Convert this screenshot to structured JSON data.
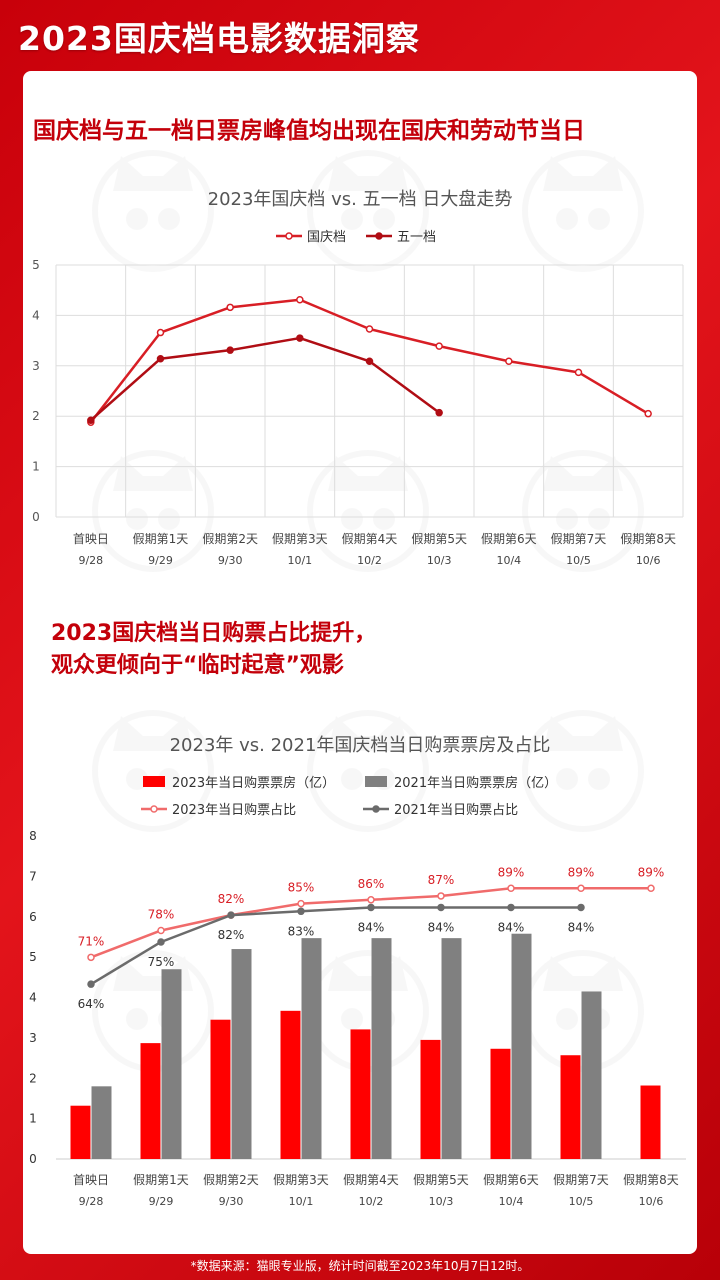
{
  "header": {
    "title": "2023国庆档电影数据洞察"
  },
  "section1": {
    "headline": "国庆档与五一档日票房峰值均出现在国庆和劳动节当日"
  },
  "section2": {
    "headline_line1": "2023国庆档当日购票占比提升，",
    "headline_line2": "观众更倾向于“临时起意”观影"
  },
  "footer": {
    "source": "*数据来源：猫眼专业版，统计时间截至2023年10月7日12时。"
  },
  "colors": {
    "accent": "#c3000a",
    "red_bar": "#ff0000",
    "gray_bar": "#808080",
    "pink_line": "#f06b6b",
    "gray_line": "#6b6b6b",
    "dark_red_line": "#b00d14",
    "red_line": "#d81e25"
  },
  "chart_data": [
    {
      "type": "line",
      "title": "2023年国庆档 vs. 五一档 日大盘走势",
      "categories": [
        "首映日",
        "假期第1天",
        "假期第2天",
        "假期第3天",
        "假期第4天",
        "假期第5天",
        "假期第6天",
        "假期第7天",
        "假期第8天"
      ],
      "dates": [
        "9/28",
        "9/29",
        "9/30",
        "10/1",
        "10/2",
        "10/3",
        "10/4",
        "10/5",
        "10/6"
      ],
      "ylim": [
        0,
        5
      ],
      "yticks": [
        0,
        1,
        2,
        3,
        4,
        5
      ],
      "grid": true,
      "legend_position": "top",
      "series": [
        {
          "name": "国庆档",
          "values": [
            1.88,
            3.66,
            4.16,
            4.31,
            3.73,
            3.39,
            3.09,
            2.87,
            2.05
          ]
        },
        {
          "name": "五一档",
          "values": [
            1.92,
            3.14,
            3.31,
            3.55,
            3.09,
            2.07,
            null,
            null,
            null
          ]
        }
      ]
    },
    {
      "type": "bar",
      "title": "2023年 vs. 2021年国庆档当日购票票房及占比",
      "categories": [
        "首映日",
        "假期第1天",
        "假期第2天",
        "假期第3天",
        "假期第4天",
        "假期第5天",
        "假期第6天",
        "假期第7天",
        "假期第8天"
      ],
      "dates": [
        "9/28",
        "9/29",
        "9/30",
        "10/1",
        "10/2",
        "10/3",
        "10/4",
        "10/5",
        "10/6"
      ],
      "ylim": [
        0,
        8
      ],
      "yticks": [
        0,
        1,
        2,
        3,
        4,
        5,
        6,
        7,
        8
      ],
      "grid": false,
      "legend_position": "top",
      "series": [
        {
          "name": "2023年当日购票票房（亿）",
          "type": "bar",
          "values": [
            1.32,
            2.87,
            3.45,
            3.67,
            3.21,
            2.95,
            2.73,
            2.57,
            1.82
          ]
        },
        {
          "name": "2021年当日购票票房（亿）",
          "type": "bar",
          "values": [
            1.8,
            4.7,
            5.2,
            5.47,
            5.47,
            5.47,
            5.58,
            4.15,
            null
          ]
        },
        {
          "name": "2023年当日购票占比",
          "type": "line",
          "values": [
            0.71,
            0.78,
            0.82,
            0.85,
            0.86,
            0.87,
            0.89,
            0.89,
            0.89
          ],
          "labels": [
            "71%",
            "78%",
            "82%",
            "85%",
            "86%",
            "87%",
            "89%",
            "89%",
            "89%"
          ]
        },
        {
          "name": "2021年当日购票占比",
          "type": "line",
          "values": [
            0.64,
            0.75,
            0.82,
            0.83,
            0.84,
            0.84,
            0.84,
            0.84,
            null
          ],
          "labels": [
            "64%",
            "75%",
            "82%",
            "83%",
            "84%",
            "84%",
            "84%",
            "84%",
            ""
          ]
        }
      ]
    }
  ]
}
